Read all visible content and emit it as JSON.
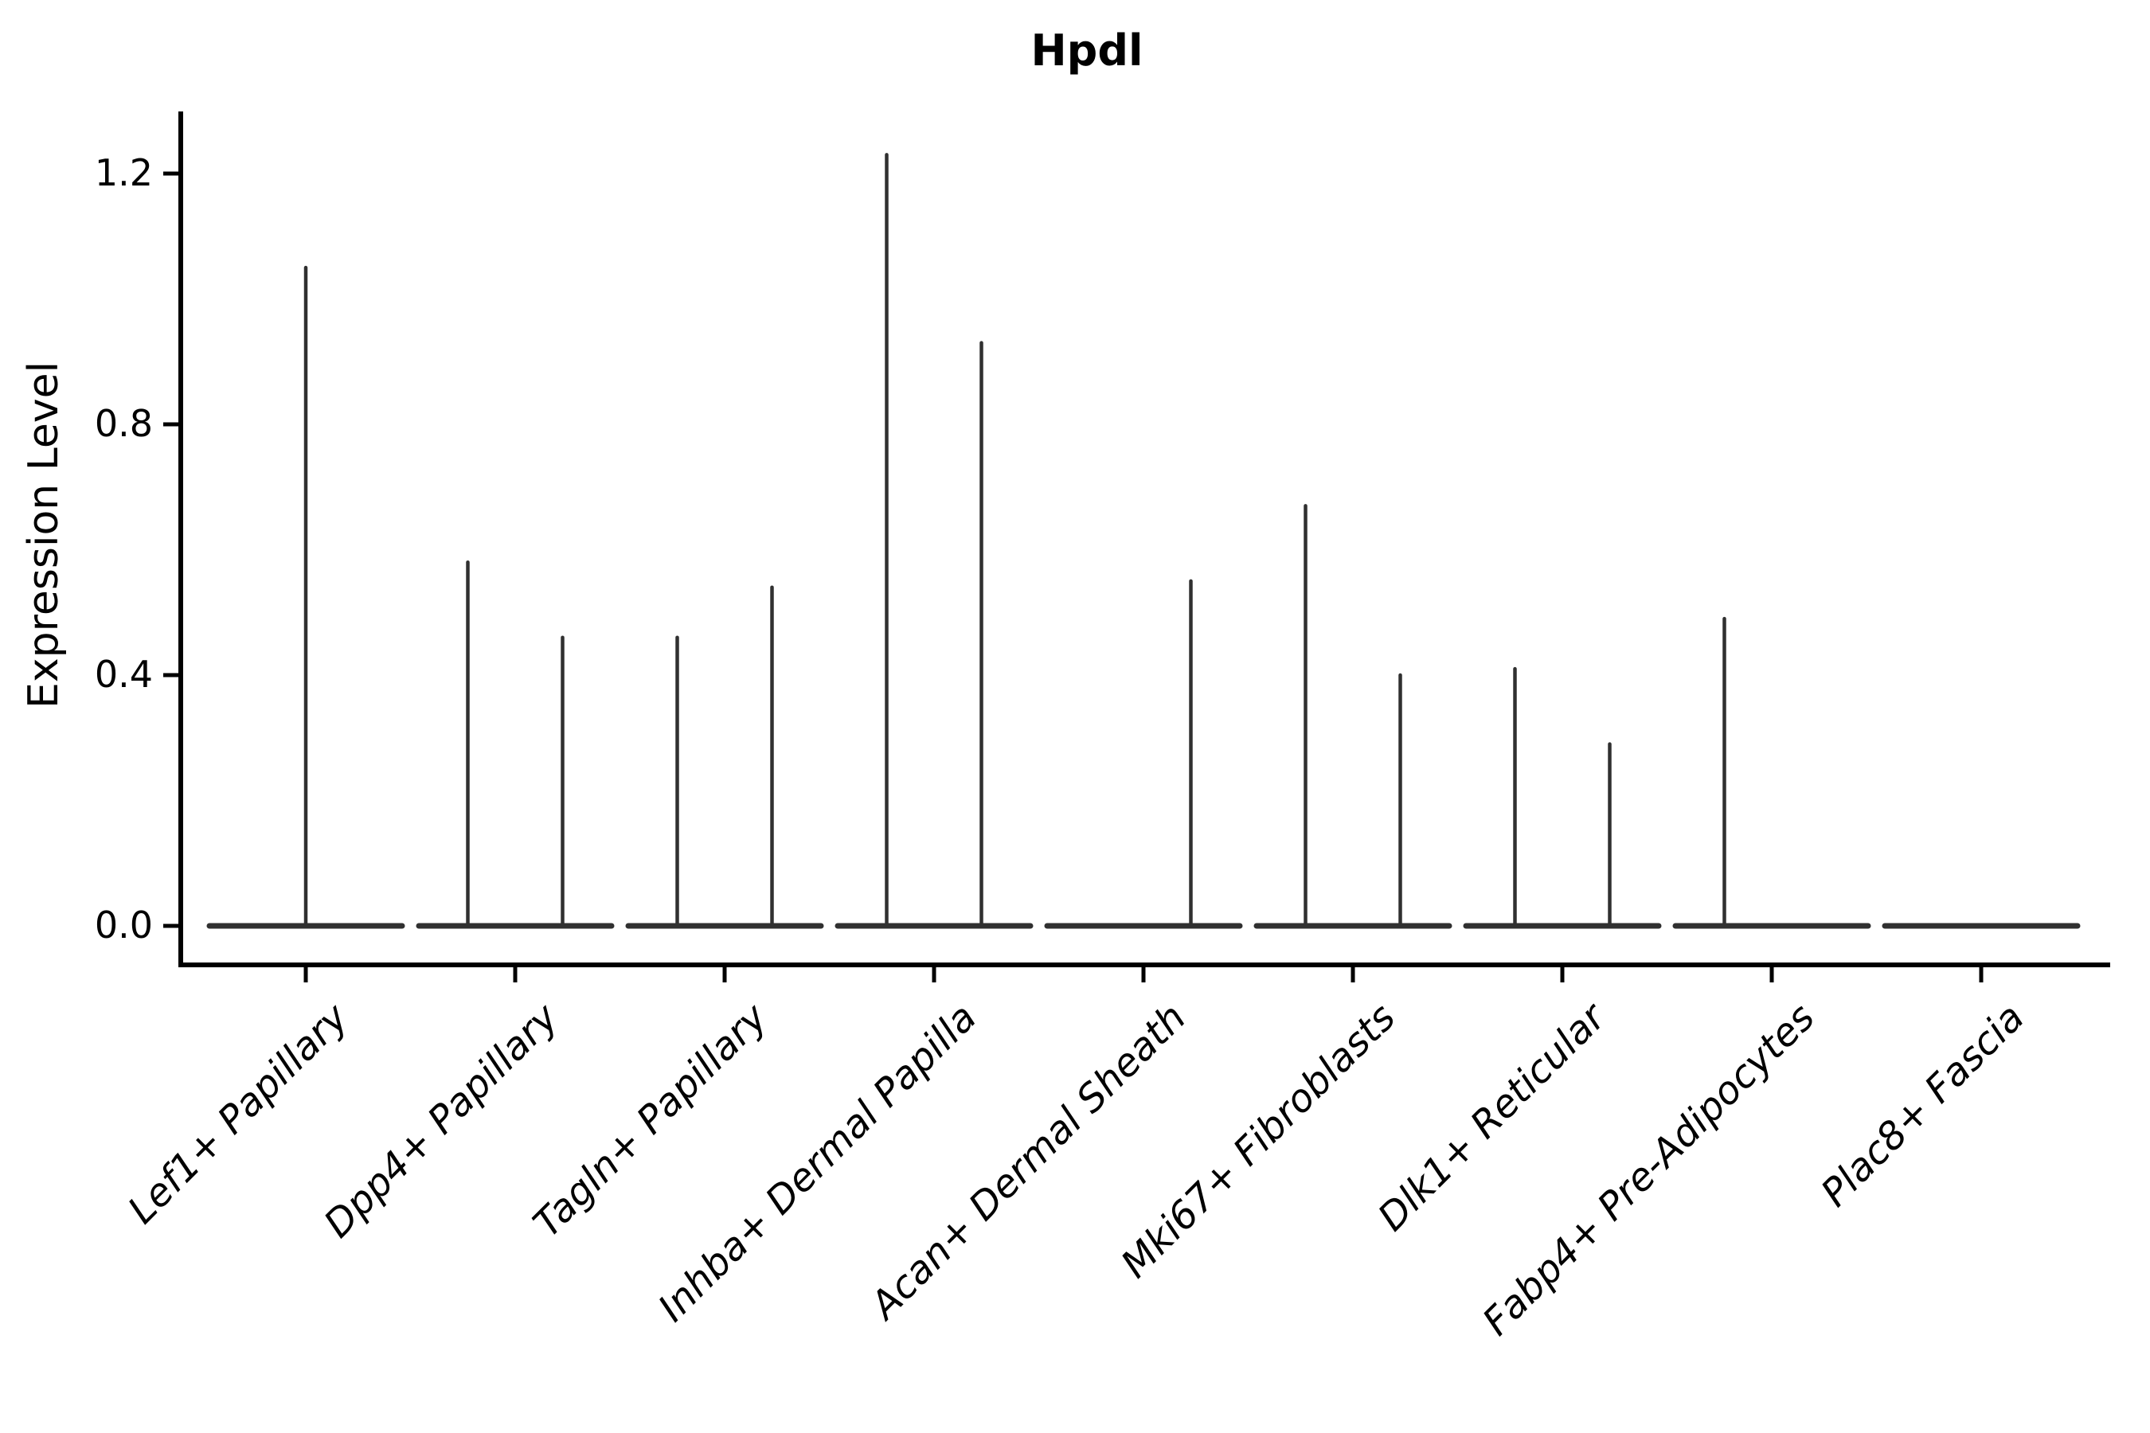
{
  "figure": {
    "title": "Hpdl",
    "y_axis_label": "Expression Level"
  },
  "chart_data": {
    "type": "violin",
    "title": "Hpdl",
    "xlabel": "",
    "ylabel": "Expression Level",
    "ytick_labels": [
      "0.0",
      "0.4",
      "0.8",
      "1.2"
    ],
    "ytick_values": [
      0.0,
      0.4,
      0.8,
      1.2
    ],
    "ylim": [
      -0.06,
      1.3
    ],
    "grid": false,
    "legend": "none",
    "style_note": "flat violins at zero expression with narrow density spikes; dark gray strokes on white",
    "categories": [
      "Lef1+ Papillary",
      "Dpp4+ Papillary",
      "Tagln+ Papillary",
      "Inhba+ Dermal Papilla",
      "Acan+ Dermal Sheath",
      "Mki67+ Fibroblasts",
      "Dlk1+ Reticular",
      "Fabp4+ Pre-Adipocytes",
      "Plac8+ Fascia"
    ],
    "violins": [
      {
        "category": "Lef1+ Papillary",
        "spikes": [
          {
            "position": "center",
            "value": 1.05
          }
        ]
      },
      {
        "category": "Dpp4+ Papillary",
        "spikes": [
          {
            "position": "left",
            "value": 0.58
          },
          {
            "position": "right",
            "value": 0.46
          }
        ]
      },
      {
        "category": "Tagln+ Papillary",
        "spikes": [
          {
            "position": "left",
            "value": 0.46
          },
          {
            "position": "right",
            "value": 0.54
          }
        ]
      },
      {
        "category": "Inhba+ Dermal Papilla",
        "spikes": [
          {
            "position": "left",
            "value": 1.23
          },
          {
            "position": "right",
            "value": 0.93
          }
        ]
      },
      {
        "category": "Acan+ Dermal Sheath",
        "spikes": [
          {
            "position": "right",
            "value": 0.55
          }
        ]
      },
      {
        "category": "Mki67+ Fibroblasts",
        "spikes": [
          {
            "position": "left",
            "value": 0.67
          },
          {
            "position": "right",
            "value": 0.4
          }
        ]
      },
      {
        "category": "Dlk1+ Reticular",
        "spikes": [
          {
            "position": "left",
            "value": 0.41
          },
          {
            "position": "right",
            "value": 0.29
          }
        ]
      },
      {
        "category": "Fabp4+ Pre-Adipocytes",
        "spikes": [
          {
            "position": "left",
            "value": 0.49
          }
        ]
      },
      {
        "category": "Plac8+ Fascia",
        "spikes": []
      }
    ],
    "colors": {
      "violin_stroke": "#303030",
      "axis": "#000000",
      "background": "#ffffff"
    }
  }
}
